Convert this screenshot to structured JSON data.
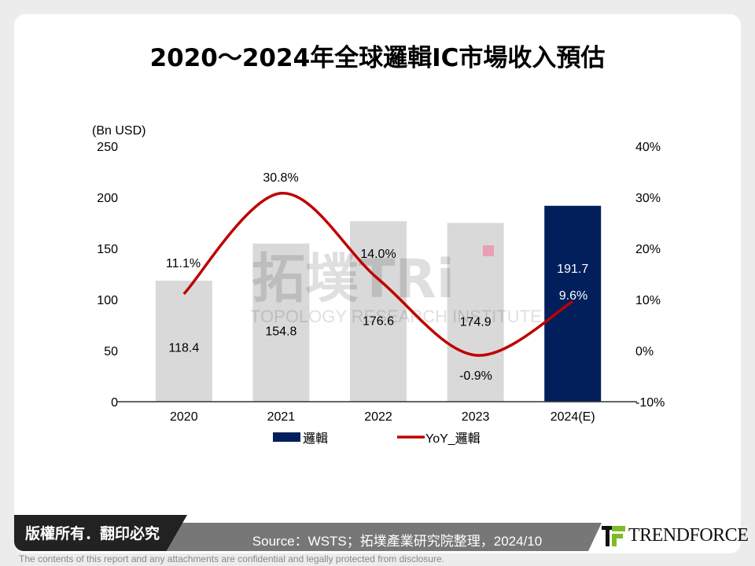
{
  "title": "2020～2024年全球邏輯IC市場收入預估",
  "chart_data": {
    "type": "bar+line",
    "title": "2020～2024年全球邏輯IC市場收入預估",
    "ylabel": "(Bn USD)",
    "categories": [
      "2020",
      "2021",
      "2022",
      "2023",
      "2024(E)"
    ],
    "series": [
      {
        "name": "邏輯",
        "type": "bar",
        "axis": "left",
        "values": [
          118.4,
          154.8,
          176.6,
          174.9,
          191.7
        ],
        "labels": [
          "118.4",
          "154.8",
          "176.6",
          "174.9",
          "191.7"
        ],
        "colors": [
          "#d9d9d9",
          "#d9d9d9",
          "#d9d9d9",
          "#d9d9d9",
          "#001f5b"
        ]
      },
      {
        "name": "YoY_邏輯",
        "type": "line",
        "axis": "right",
        "values": [
          11.1,
          30.8,
          14.0,
          -0.9,
          9.6
        ],
        "labels": [
          "11.1%",
          "30.8%",
          "14.0%",
          "-0.9%",
          "9.6%"
        ],
        "color": "#c00000",
        "smooth": true
      }
    ],
    "ylim": [
      0,
      250
    ],
    "yticks": [
      "0",
      "50",
      "100",
      "150",
      "200",
      "250"
    ],
    "y2lim": [
      -10,
      40
    ],
    "y2ticks": [
      "-10%",
      "0%",
      "10%",
      "20%",
      "30%",
      "40%"
    ],
    "legend": "bottom",
    "grid": false
  },
  "watermark": "拓墣 TRi TOPOLOGY RESEARCH INSTITUTE",
  "footer": {
    "copyright": "版權所有．翻印必究",
    "source": "Source：WSTS；拓墣產業研究院整理，2024/10",
    "logo": "TRENDFORCE",
    "disclaimer": "The contents of this report and any attachments are confidential and legally protected from disclosure."
  }
}
